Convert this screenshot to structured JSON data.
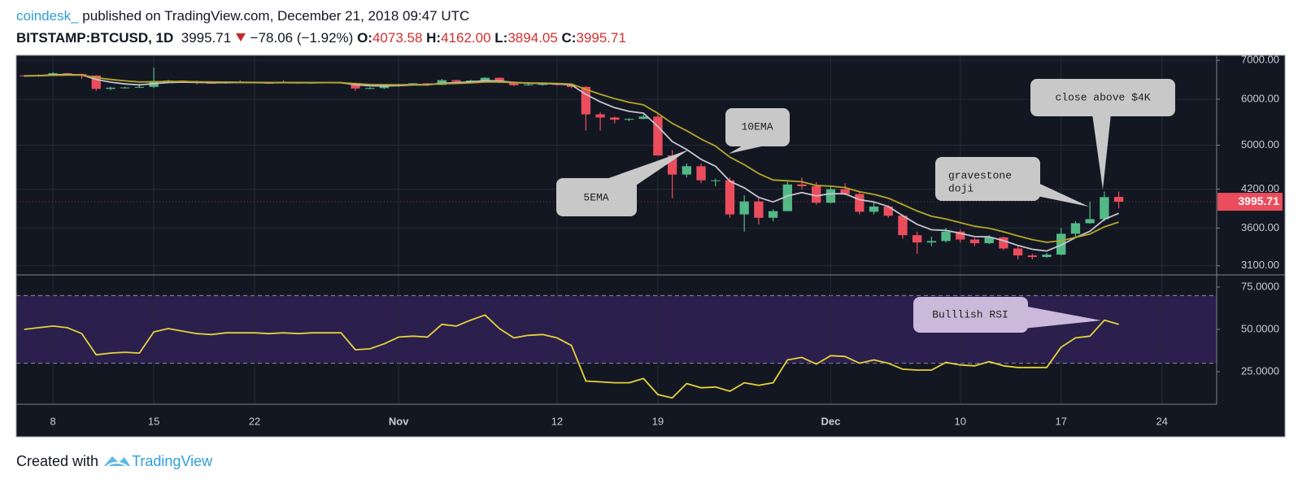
{
  "header": {
    "author": "coindesk_",
    "published": "published on TradingView.com, December 21, 2018 09:47 UTC",
    "symbol": "BITSTAMP:BTCUSD, 1D",
    "last": "3995.71",
    "change": "−78.06 (−1.92%)",
    "fields": [
      {
        "key": "O:",
        "value": "4073.58"
      },
      {
        "key": "H:",
        "value": "4162.00"
      },
      {
        "key": "L:",
        "value": "3894.05"
      },
      {
        "key": "C:",
        "value": "3995.71"
      }
    ]
  },
  "footer": {
    "prefix": "Created with",
    "brand": "TradingView"
  },
  "chart_data": [
    {
      "type": "candlestick",
      "x": [
        "2018-10-06",
        "2018-10-07",
        "2018-10-08",
        "2018-10-09",
        "2018-10-10",
        "2018-10-11",
        "2018-10-12",
        "2018-10-13",
        "2018-10-14",
        "2018-10-15",
        "2018-10-16",
        "2018-10-17",
        "2018-10-18",
        "2018-10-19",
        "2018-10-20",
        "2018-10-21",
        "2018-10-22",
        "2018-10-23",
        "2018-10-24",
        "2018-10-25",
        "2018-10-26",
        "2018-10-27",
        "2018-10-28",
        "2018-10-29",
        "2018-10-30",
        "2018-10-31",
        "2018-11-01",
        "2018-11-02",
        "2018-11-03",
        "2018-11-04",
        "2018-11-05",
        "2018-11-06",
        "2018-11-07",
        "2018-11-08",
        "2018-11-09",
        "2018-11-10",
        "2018-11-11",
        "2018-11-12",
        "2018-11-13",
        "2018-11-14",
        "2018-11-15",
        "2018-11-16",
        "2018-11-17",
        "2018-11-18",
        "2018-11-19",
        "2018-11-20",
        "2018-11-21",
        "2018-11-22",
        "2018-11-23",
        "2018-11-24",
        "2018-11-25",
        "2018-11-26",
        "2018-11-27",
        "2018-11-28",
        "2018-11-29",
        "2018-11-30",
        "2018-12-01",
        "2018-12-02",
        "2018-12-03",
        "2018-12-04",
        "2018-12-05",
        "2018-12-06",
        "2018-12-07",
        "2018-12-08",
        "2018-12-09",
        "2018-12-10",
        "2018-12-11",
        "2018-12-12",
        "2018-12-13",
        "2018-12-14",
        "2018-12-15",
        "2018-12-16",
        "2018-12-17",
        "2018-12-18",
        "2018-12-19",
        "2018-12-20",
        "2018-12-21"
      ],
      "open": [
        6590,
        6580,
        6600,
        6650,
        6630,
        6590,
        6250,
        6280,
        6285,
        6300,
        6450,
        6460,
        6440,
        6400,
        6395,
        6410,
        6420,
        6400,
        6395,
        6410,
        6400,
        6405,
        6410,
        6400,
        6260,
        6270,
        6320,
        6350,
        6390,
        6350,
        6470,
        6430,
        6460,
        6530,
        6420,
        6340,
        6360,
        6370,
        6350,
        6300,
        5650,
        5580,
        5530,
        5550,
        5600,
        4800,
        4450,
        4600,
        4350,
        4350,
        3800,
        4000,
        3750,
        3850,
        4280,
        4250,
        3980,
        4200,
        4120,
        3840,
        3920,
        3780,
        3500,
        3400,
        3420,
        3550,
        3440,
        3390,
        3470,
        3320,
        3230,
        3210,
        3240,
        3520,
        3670,
        3730,
        4073.58
      ],
      "high": [
        6600,
        6620,
        6680,
        6660,
        6640,
        6600,
        6300,
        6300,
        6380,
        6800,
        6480,
        6470,
        6460,
        6420,
        6420,
        6460,
        6430,
        6420,
        6460,
        6420,
        6420,
        6420,
        6420,
        6410,
        6290,
        6340,
        6380,
        6400,
        6400,
        6500,
        6480,
        6480,
        6550,
        6540,
        6440,
        6380,
        6380,
        6380,
        6360,
        6320,
        5700,
        5600,
        5560,
        5650,
        5650,
        4900,
        4650,
        4650,
        4380,
        4400,
        4100,
        4050,
        3880,
        4350,
        4400,
        4320,
        4250,
        4300,
        4150,
        4000,
        3940,
        3800,
        3550,
        3480,
        3600,
        3580,
        3460,
        3500,
        3480,
        3350,
        3250,
        3260,
        3600,
        3700,
        4000,
        4160,
        4162
      ],
      "low": [
        6560,
        6560,
        6580,
        6600,
        6500,
        6200,
        6220,
        6260,
        6270,
        6270,
        6420,
        6420,
        6370,
        6380,
        6380,
        6400,
        6390,
        6380,
        6390,
        6380,
        6390,
        6400,
        6390,
        6200,
        6240,
        6250,
        6300,
        6340,
        6330,
        6340,
        6400,
        6420,
        6450,
        6390,
        6320,
        6330,
        6330,
        6330,
        6270,
        5300,
        5300,
        5450,
        5500,
        5540,
        4800,
        4050,
        4400,
        4300,
        4250,
        3750,
        3550,
        3650,
        3700,
        3850,
        4200,
        3950,
        3970,
        4100,
        3800,
        3800,
        3750,
        3450,
        3250,
        3350,
        3400,
        3400,
        3350,
        3380,
        3300,
        3180,
        3180,
        3200,
        3230,
        3480,
        3660,
        3700,
        3894.05
      ],
      "close": [
        6580,
        6600,
        6650,
        6630,
        6590,
        6250,
        6280,
        6285,
        6300,
        6450,
        6460,
        6440,
        6400,
        6395,
        6410,
        6420,
        6400,
        6395,
        6410,
        6400,
        6405,
        6410,
        6400,
        6260,
        6270,
        6320,
        6350,
        6390,
        6350,
        6470,
        6430,
        6460,
        6530,
        6420,
        6340,
        6360,
        6370,
        6350,
        6300,
        5650,
        5580,
        5530,
        5550,
        5600,
        4800,
        4450,
        4600,
        4350,
        4350,
        3800,
        4000,
        3750,
        3850,
        4280,
        4250,
        3980,
        4200,
        4120,
        3840,
        3920,
        3780,
        3500,
        3400,
        3420,
        3550,
        3440,
        3390,
        3470,
        3320,
        3230,
        3210,
        3240,
        3520,
        3670,
        3730,
        4070,
        3995.71
      ],
      "up_color": "#53b987",
      "down_color": "#eb4d5c",
      "series": [
        {
          "name": "5EMA",
          "color": "#c4c4d0",
          "values": [
            6580,
            6587,
            6608,
            6615,
            6607,
            6488,
            6419,
            6374,
            6349,
            6383,
            6409,
            6419,
            6413,
            6407,
            6408,
            6412,
            6408,
            6404,
            6406,
            6404,
            6404,
            6406,
            6404,
            6356,
            6327,
            6325,
            6333,
            6352,
            6351,
            6391,
            6404,
            6423,
            6459,
            6446,
            6411,
            6394,
            6386,
            6374,
            6349,
            6116,
            5937,
            5801,
            5717,
            5678,
            5385,
            5073,
            4915,
            4727,
            4601,
            4334,
            4223,
            4065,
            3993,
            4089,
            4143,
            4089,
            4126,
            4124,
            4029,
            3993,
            3922,
            3781,
            3654,
            3576,
            3567,
            3525,
            3480,
            3477,
            3425,
            3360,
            3310,
            3287,
            3365,
            3467,
            3555,
            3727,
            3817
          ]
        },
        {
          "name": "10EMA",
          "color": "#b5a626",
          "values": [
            6580,
            6584,
            6596,
            6602,
            6600,
            6536,
            6489,
            6452,
            6424,
            6429,
            6435,
            6436,
            6429,
            6423,
            6421,
            6417,
            6414,
            6411,
            6411,
            6409,
            6408,
            6408,
            6407,
            6380,
            6360,
            6353,
            6352,
            6359,
            6357,
            6378,
            6387,
            6400,
            6424,
            6423,
            6408,
            6399,
            6394,
            6386,
            6370,
            6239,
            6119,
            6012,
            5928,
            5868,
            5674,
            5451,
            5296,
            5124,
            4983,
            4768,
            4628,
            4468,
            4356,
            4342,
            4325,
            4262,
            4251,
            4227,
            4157,
            4114,
            4053,
            3952,
            3852,
            3773,
            3732,
            3679,
            3626,
            3598,
            3547,
            3490,
            3439,
            3403,
            3424,
            3469,
            3516,
            3617,
            3686
          ]
        }
      ],
      "ylim": [
        2990,
        7140
      ],
      "log_scale": true,
      "grid": true,
      "yticks": [
        {
          "value": 3100,
          "label": "3100.00"
        },
        {
          "value": 3600,
          "label": "3600.00"
        },
        {
          "value": 4200,
          "label": "4200.00"
        },
        {
          "value": 5000,
          "label": "5000.00"
        },
        {
          "value": 6000,
          "label": "6000.00"
        },
        {
          "value": 7000,
          "label": "7000.00"
        }
      ],
      "xticks": [
        {
          "value": "2018-10-08",
          "label": "8"
        },
        {
          "value": "2018-10-15",
          "label": "15"
        },
        {
          "value": "2018-10-22",
          "label": "22"
        },
        {
          "value": "2018-11-01",
          "label": "Nov"
        },
        {
          "value": "2018-11-12",
          "label": "12"
        },
        {
          "value": "2018-11-19",
          "label": "19"
        },
        {
          "value": "2018-12-01",
          "label": "Dec"
        },
        {
          "value": "2018-12-10",
          "label": "10"
        },
        {
          "value": "2018-12-17",
          "label": "17"
        },
        {
          "value": "2018-12-24",
          "label": "24"
        }
      ],
      "annotations": [
        {
          "lines": [
            "gravestone",
            "doji"
          ]
        },
        {
          "text": "close above $4K"
        }
      ]
    },
    {
      "type": "line",
      "values": [
        50,
        51,
        52,
        51,
        47.5,
        35,
        36,
        36.5,
        36,
        48.5,
        50.5,
        49,
        47.5,
        47,
        48,
        48,
        48,
        47.5,
        48,
        47.5,
        48,
        48,
        48,
        38,
        38.5,
        41.5,
        45.5,
        46,
        45.5,
        53,
        52,
        55.5,
        58.5,
        50.5,
        45,
        46.5,
        47,
        45,
        40.5,
        19.5,
        19,
        18.5,
        18.5,
        21,
        11.5,
        9.5,
        18,
        15.5,
        16,
        13.5,
        18.5,
        17,
        18.5,
        32,
        33.5,
        29.5,
        34.5,
        34,
        30,
        32,
        30,
        26.5,
        26,
        26,
        30.5,
        29,
        28.5,
        31,
        28.5,
        27.5,
        27.5,
        27.5,
        39.5,
        45,
        46,
        55.5,
        53
      ],
      "color": "#e5d23a",
      "ylim": [
        5.8,
        82.2
      ],
      "yticks": [
        {
          "value": 25,
          "label": "25.0000"
        },
        {
          "value": 50,
          "label": "50.0000"
        },
        {
          "value": 75,
          "label": "75.0000"
        }
      ],
      "band": [
        30,
        70
      ],
      "band_color": "#2a1f4d",
      "annotations": [
        {
          "text": "Bulllish RSI"
        }
      ]
    }
  ]
}
